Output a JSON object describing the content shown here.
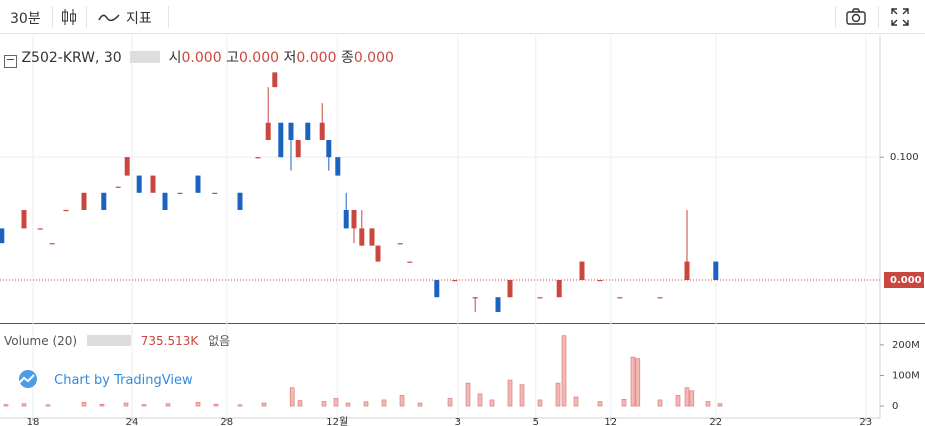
{
  "toolbar": {
    "interval": "30분",
    "indicators": "지표"
  },
  "legend": {
    "symbol": "Z502-KRW, 30",
    "open_label": "시",
    "open": "0.000",
    "high_label": "고",
    "high": "0.000",
    "low_label": "저",
    "low": "0.000",
    "close_label": "종",
    "close": "0.000"
  },
  "volume_legend": {
    "name": "Volume (20)",
    "value": "735.513K",
    "extra": "없음"
  },
  "watermark": "Chart by TradingView",
  "chart_data": {
    "type": "candlestick",
    "up_color": "#c9473f",
    "down_color": "#1a64c0",
    "xlim": [
      0,
      146
    ],
    "xticks": [
      {
        "value": 5.5,
        "label": "18"
      },
      {
        "value": 22,
        "label": "24"
      },
      {
        "value": 37.8,
        "label": "28"
      },
      {
        "value": 56.2,
        "label": "12월"
      },
      {
        "value": 76.3,
        "label": "3"
      },
      {
        "value": 89.3,
        "label": "5"
      },
      {
        "value": 101.8,
        "label": "12"
      },
      {
        "value": 119.3,
        "label": "22"
      },
      {
        "value": 144.3,
        "label": "23"
      }
    ],
    "ylim": [
      -0.035,
      0.197
    ],
    "yticks": [
      {
        "value": 0.1,
        "label": "0.100"
      }
    ],
    "last_price": {
      "value": 0,
      "label": "0.000"
    },
    "candles": {
      "x": [
        0.3,
        4,
        6.7,
        8.7,
        11,
        14,
        17.3,
        19.7,
        21.2,
        23.2,
        25.5,
        27.5,
        30,
        33,
        35.8,
        40,
        43,
        44.7,
        45.8,
        46.8,
        48.5,
        49.7,
        51.3,
        53.7,
        54.8,
        56.3,
        57.7,
        59,
        60.3,
        62,
        63,
        66.7,
        68.3,
        72.8,
        75.8,
        79.2,
        83,
        85,
        90,
        93.2,
        97,
        100,
        103.3,
        110,
        114.5,
        119.3
      ],
      "open": [
        0.042,
        0.042,
        0.042,
        0.03,
        0.057,
        0.057,
        0.071,
        0.076,
        0.085,
        0.085,
        0.071,
        0.071,
        0.071,
        0.085,
        0.071,
        0.071,
        0.1,
        0.114,
        0.157,
        0.128,
        0.128,
        0.1,
        0.128,
        0.114,
        0.114,
        0.1,
        0.057,
        0.042,
        0.028,
        0.028,
        0.015,
        0.03,
        0.015,
        0,
        0,
        -0.014,
        -0.014,
        -0.014,
        -0.014,
        -0.014,
        0,
        0,
        -0.014,
        -0.014,
        0,
        0.015
      ],
      "high": [
        0.042,
        0.057,
        0.042,
        0.03,
        0.057,
        0.071,
        0.071,
        0.076,
        0.1,
        0.085,
        0.085,
        0.071,
        0.071,
        0.085,
        0.071,
        0.071,
        0.1,
        0.157,
        0.169,
        0.128,
        0.128,
        0.114,
        0.128,
        0.144,
        0.114,
        0.1,
        0.071,
        0.057,
        0.057,
        0.042,
        0.028,
        0.03,
        0.015,
        0,
        0,
        -0.014,
        -0.014,
        0,
        -0.014,
        0,
        0.015,
        0,
        -0.014,
        -0.014,
        0.057,
        0.015
      ],
      "low": [
        0.03,
        0.042,
        0.042,
        0.03,
        0.057,
        0.057,
        0.057,
        0.076,
        0.085,
        0.071,
        0.071,
        0.057,
        0.071,
        0.071,
        0.071,
        0.057,
        0.1,
        0.114,
        0.157,
        0.1,
        0.089,
        0.1,
        0.114,
        0.114,
        0.089,
        0.085,
        0.042,
        0.03,
        0.028,
        0.028,
        0.015,
        0.03,
        0.015,
        -0.014,
        0,
        -0.026,
        -0.026,
        -0.014,
        -0.014,
        -0.014,
        0,
        0,
        -0.014,
        -0.014,
        0,
        0
      ],
      "close": [
        0.03,
        0.057,
        0.042,
        0.03,
        0.057,
        0.071,
        0.057,
        0.076,
        0.1,
        0.071,
        0.085,
        0.057,
        0.071,
        0.071,
        0.071,
        0.057,
        0.1,
        0.128,
        0.169,
        0.1,
        0.114,
        0.114,
        0.114,
        0.128,
        0.1,
        0.085,
        0.042,
        0.057,
        0.042,
        0.042,
        0.028,
        0.03,
        0.015,
        -0.014,
        0,
        -0.014,
        -0.026,
        0,
        -0.014,
        0,
        0.015,
        0,
        -0.014,
        -0.014,
        0.015,
        0
      ]
    },
    "volume": {
      "color": "#f2b8b5",
      "edge": "#d9726c",
      "ylim": [
        -39000000,
        265000000
      ],
      "yticks": [
        {
          "value": 200000000,
          "label": "200M"
        },
        {
          "value": 100000000,
          "label": "100M"
        },
        0
      ],
      "x": [
        1,
        4,
        8,
        14,
        17,
        21,
        24,
        28,
        33,
        36,
        40,
        44,
        48.7,
        50,
        54,
        56,
        58,
        61,
        64,
        67,
        70,
        75,
        78,
        80,
        82,
        85,
        87,
        90,
        93,
        94,
        96,
        100,
        104,
        105.5,
        106.3,
        110,
        113,
        114.5,
        115.3,
        118,
        120
      ],
      "values": [
        5000000,
        8000000,
        4000000,
        12000000,
        6000000,
        10000000,
        5000000,
        8000000,
        12000000,
        6000000,
        4000000,
        10000000,
        60000000,
        18000000,
        15000000,
        25000000,
        10000000,
        14000000,
        20000000,
        35000000,
        10000000,
        25000000,
        75000000,
        40000000,
        20000000,
        85000000,
        70000000,
        20000000,
        75000000,
        230000000,
        30000000,
        15000000,
        22000000,
        160000000,
        155000000,
        20000000,
        35000000,
        60000000,
        50000000,
        15000000,
        8000000
      ]
    }
  }
}
